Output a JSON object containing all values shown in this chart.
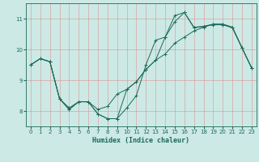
{
  "xlabel": "Humidex (Indice chaleur)",
  "bg_color": "#cce9e5",
  "grid_color": "#e08080",
  "line_color": "#1a6b5a",
  "xlim": [
    -0.5,
    23.5
  ],
  "ylim": [
    7.5,
    11.5
  ],
  "yticks": [
    8,
    9,
    10,
    11
  ],
  "xticks": [
    0,
    1,
    2,
    3,
    4,
    5,
    6,
    7,
    8,
    9,
    10,
    11,
    12,
    13,
    14,
    15,
    16,
    17,
    18,
    19,
    20,
    21,
    22,
    23
  ],
  "line1_x": [
    0,
    1,
    2,
    3,
    4,
    5,
    6,
    7,
    8,
    9,
    10,
    11,
    12,
    13,
    14,
    15,
    16,
    17,
    18,
    19,
    20,
    21,
    22,
    23
  ],
  "line1_y": [
    9.5,
    9.7,
    9.6,
    8.4,
    8.1,
    8.3,
    8.3,
    7.9,
    7.75,
    7.75,
    8.1,
    8.5,
    9.5,
    10.3,
    10.4,
    11.1,
    11.2,
    10.7,
    10.75,
    10.8,
    10.8,
    10.7,
    10.05,
    9.4
  ],
  "line2_x": [
    0,
    1,
    2,
    3,
    4,
    5,
    6,
    7,
    8,
    9,
    10,
    11,
    12,
    13,
    14,
    15,
    16,
    17,
    18,
    19,
    20,
    21,
    22,
    23
  ],
  "line2_y": [
    9.5,
    9.7,
    9.6,
    8.4,
    8.05,
    8.3,
    8.3,
    8.05,
    8.15,
    8.55,
    8.7,
    8.95,
    9.35,
    9.65,
    9.85,
    10.2,
    10.4,
    10.6,
    10.72,
    10.82,
    10.82,
    10.72,
    10.05,
    9.4
  ],
  "line3_x": [
    0,
    1,
    2,
    3,
    4,
    5,
    6,
    7,
    8,
    9,
    10,
    11,
    12,
    13,
    14,
    15,
    16,
    17,
    18,
    19,
    20,
    21,
    22,
    23
  ],
  "line3_y": [
    9.5,
    9.7,
    9.6,
    8.4,
    8.05,
    8.3,
    8.3,
    7.9,
    7.75,
    7.75,
    8.7,
    8.95,
    9.35,
    9.65,
    10.4,
    10.9,
    11.2,
    10.72,
    10.75,
    10.82,
    10.82,
    10.72,
    10.05,
    9.4
  ],
  "tick_labelsize": 5,
  "xlabel_fontsize": 6,
  "linewidth": 0.7,
  "markersize": 2.5
}
